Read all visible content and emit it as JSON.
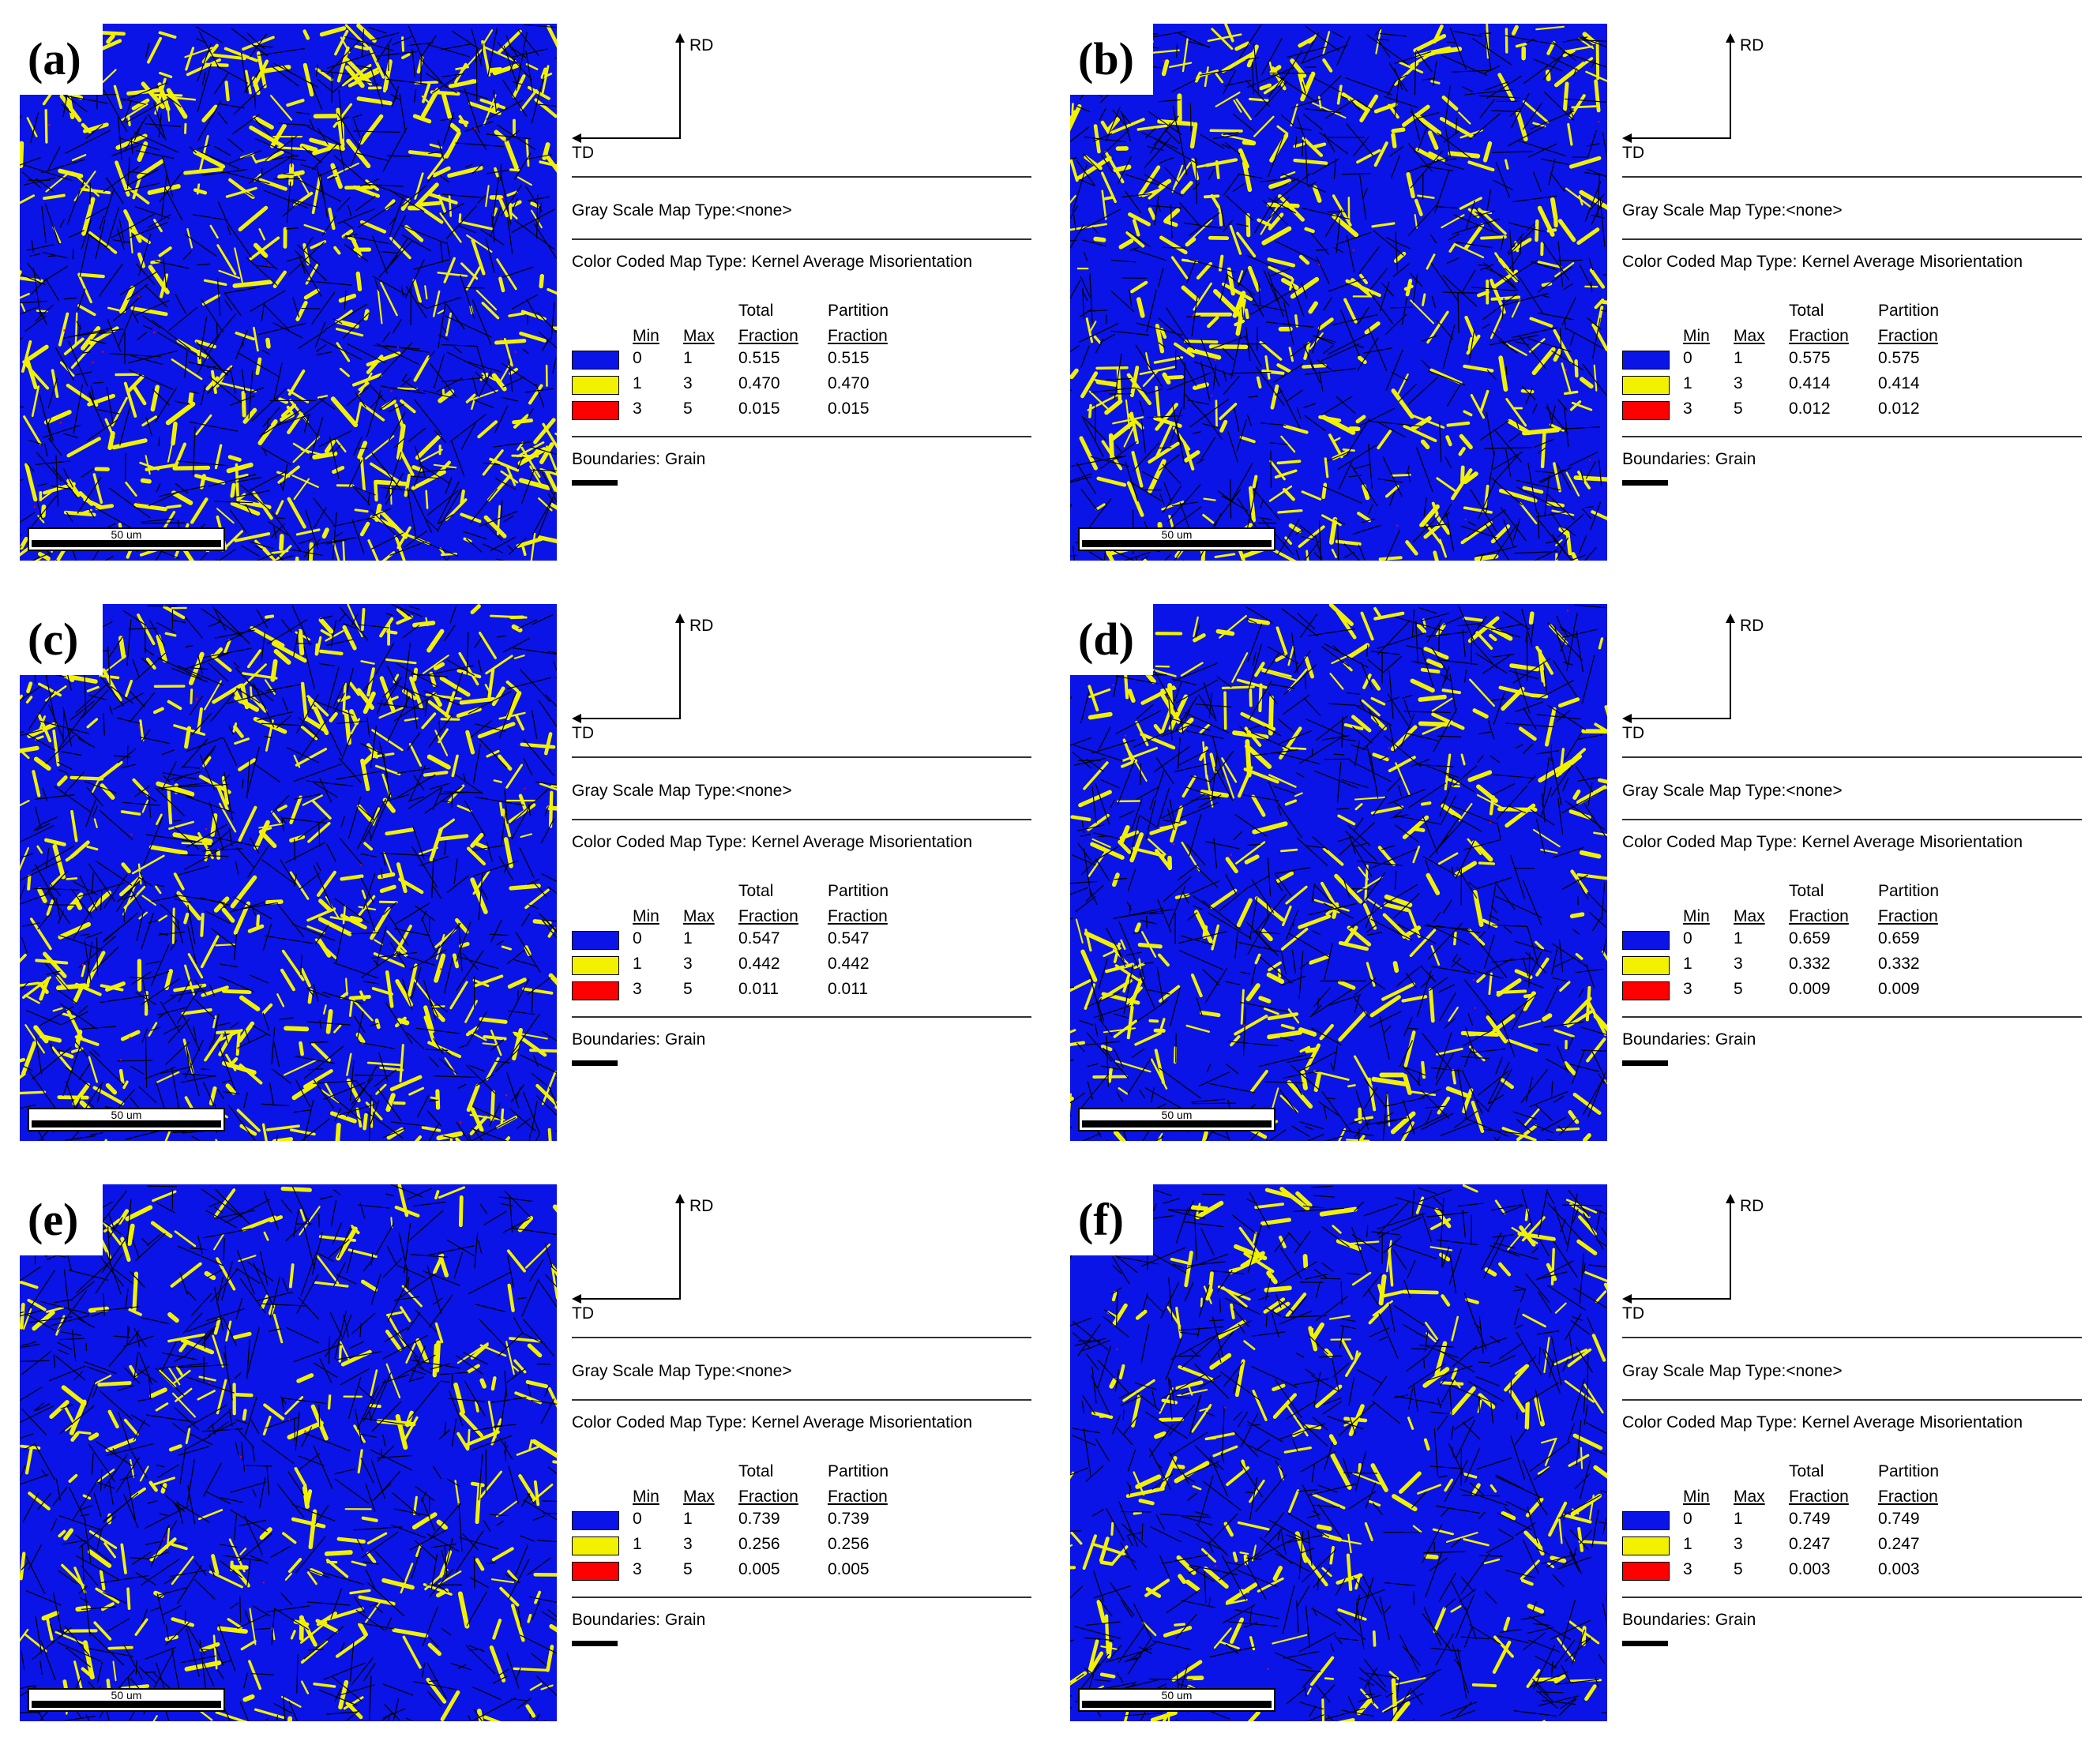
{
  "colors": {
    "blue": "#0a14e6",
    "yellow": "#f2f200",
    "red": "#ff0000",
    "boundary": "#000000"
  },
  "common": {
    "rd": "RD",
    "td": "TD",
    "gray_scale": "Gray Scale Map Type:<none>",
    "color_coded": "Color Coded Map Type: Kernel Average Misorientation",
    "headers": {
      "min": "Min",
      "max": "Max",
      "total1": "Total",
      "total2": "Fraction",
      "part1": "Partition",
      "part2": "Fraction"
    },
    "boundaries": "Boundaries: Grain",
    "scale_bar": "50 um"
  },
  "panels": [
    {
      "label": "(a)",
      "rows": [
        {
          "min": "0",
          "max": "1",
          "total": "0.515",
          "partition": "0.515"
        },
        {
          "min": "1",
          "max": "3",
          "total": "0.470",
          "partition": "0.470"
        },
        {
          "min": "3",
          "max": "5",
          "total": "0.015",
          "partition": "0.015"
        }
      ]
    },
    {
      "label": "(b)",
      "rows": [
        {
          "min": "0",
          "max": "1",
          "total": "0.575",
          "partition": "0.575"
        },
        {
          "min": "1",
          "max": "3",
          "total": "0.414",
          "partition": "0.414"
        },
        {
          "min": "3",
          "max": "5",
          "total": "0.012",
          "partition": "0.012"
        }
      ]
    },
    {
      "label": "(c)",
      "rows": [
        {
          "min": "0",
          "max": "1",
          "total": "0.547",
          "partition": "0.547"
        },
        {
          "min": "1",
          "max": "3",
          "total": "0.442",
          "partition": "0.442"
        },
        {
          "min": "3",
          "max": "5",
          "total": "0.011",
          "partition": "0.011"
        }
      ]
    },
    {
      "label": "(d)",
      "rows": [
        {
          "min": "0",
          "max": "1",
          "total": "0.659",
          "partition": "0.659"
        },
        {
          "min": "1",
          "max": "3",
          "total": "0.332",
          "partition": "0.332"
        },
        {
          "min": "3",
          "max": "5",
          "total": "0.009",
          "partition": "0.009"
        }
      ]
    },
    {
      "label": "(e)",
      "rows": [
        {
          "min": "0",
          "max": "1",
          "total": "0.739",
          "partition": "0.739"
        },
        {
          "min": "1",
          "max": "3",
          "total": "0.256",
          "partition": "0.256"
        },
        {
          "min": "3",
          "max": "5",
          "total": "0.005",
          "partition": "0.005"
        }
      ]
    },
    {
      "label": "(f)",
      "rows": [
        {
          "min": "0",
          "max": "1",
          "total": "0.749",
          "partition": "0.749"
        },
        {
          "min": "1",
          "max": "3",
          "total": "0.247",
          "partition": "0.247"
        },
        {
          "min": "3",
          "max": "5",
          "total": "0.003",
          "partition": "0.003"
        }
      ]
    }
  ]
}
